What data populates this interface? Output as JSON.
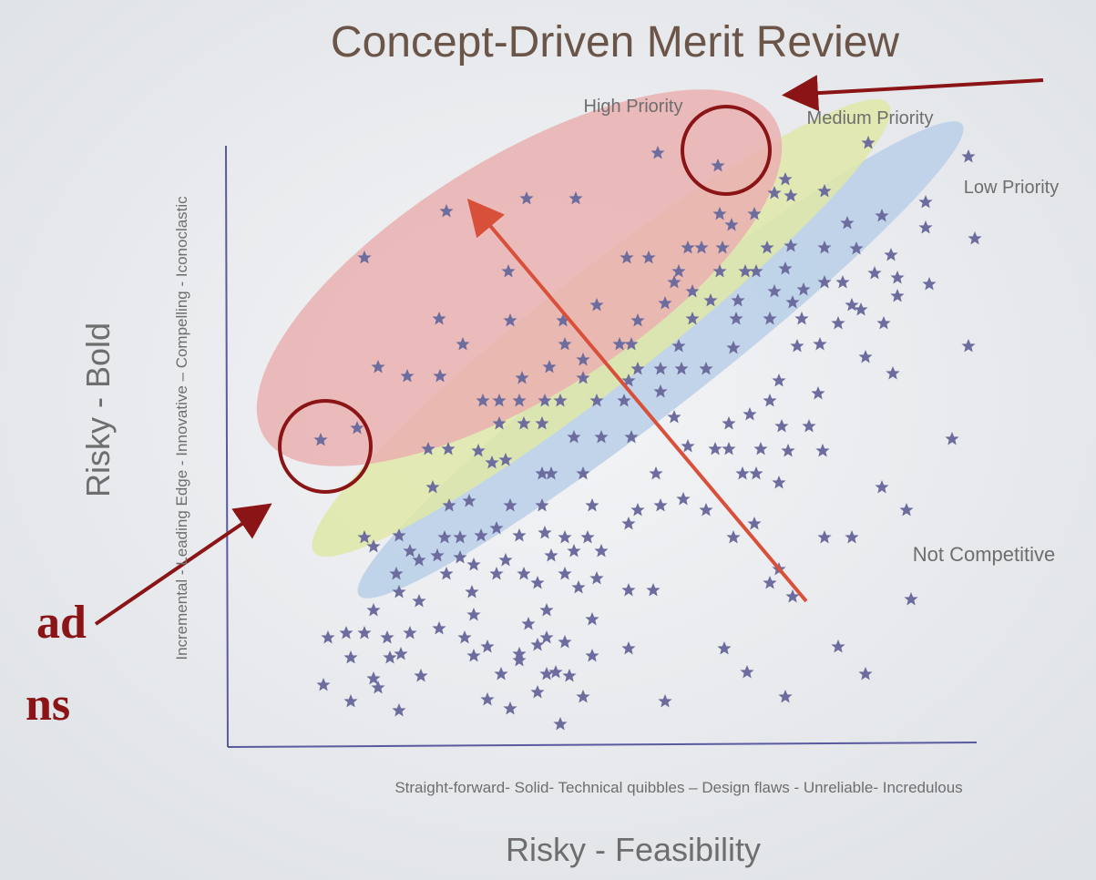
{
  "header": {
    "title": "Concept-Driven Merit Review"
  },
  "regions": {
    "high": "High Priority",
    "medium": "Medium Priority",
    "low": "Low Priority",
    "none": "Not Competitive"
  },
  "axes": {
    "y_title": "Risky - Bold",
    "y_scale": "Incremental - Leading Edge - Innovative – Compelling - Iconoclastic",
    "x_scale": "Straight-forward- Solid-  Technical quibbles – Design flaws - Unreliable- Incredulous",
    "x_title": "Risky - Feasibility"
  },
  "annotation": {
    "line1": "ad",
    "line2": "ns"
  }
}
